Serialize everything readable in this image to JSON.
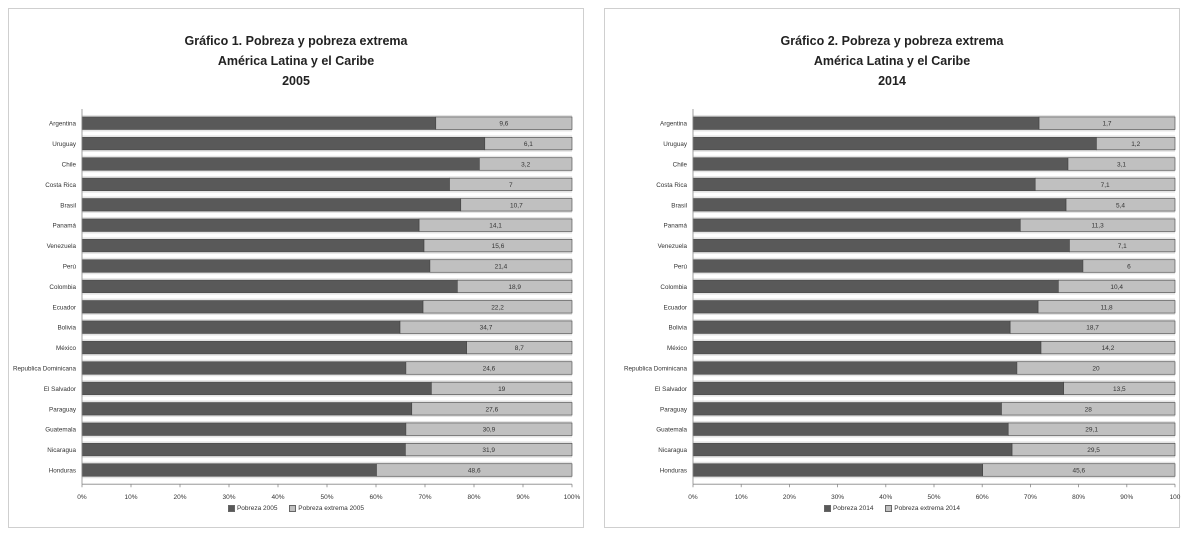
{
  "chart_data": [
    {
      "type": "bar",
      "orientation": "horizontal",
      "stacked": true,
      "title_lines": [
        "Gráfico 1. Pobreza y pobreza extrema",
        "América Latina y el Caribe",
        "2005"
      ],
      "categories": [
        "Argentina",
        "Uruguay",
        "Chile",
        "Costa Rica",
        "Brasil",
        "Panamá",
        "Venezuela",
        "Perú",
        "Colombia",
        "Ecuador",
        "Bolivia",
        "México",
        "Republica Dominicana",
        "El Salvador",
        "Paraguay",
        "Guatemala",
        "Nicaragua",
        "Honduras"
      ],
      "series": [
        {
          "name": "Pobreza 2005",
          "color": "#595959",
          "values": [
            72.2,
            82.2,
            81.1,
            75.0,
            77.3,
            68.8,
            69.8,
            71.0,
            76.6,
            69.6,
            64.9,
            78.5,
            66.1,
            71.3,
            67.3,
            66.1,
            66.0,
            60.1
          ]
        },
        {
          "name": "Pobreza extrema 2005",
          "color": "#c0c0c0",
          "values": [
            27.8,
            17.8,
            18.9,
            25.0,
            22.7,
            31.2,
            30.2,
            29.0,
            23.4,
            30.4,
            35.1,
            21.5,
            33.9,
            28.7,
            32.7,
            33.9,
            34.0,
            39.9
          ]
        }
      ],
      "data_labels": [
        "9,6",
        "6,1",
        "3,2",
        "7",
        "10,7",
        "14,1",
        "15,6",
        "21,4",
        "18,9",
        "22,2",
        "34,7",
        "8,7",
        "24,6",
        "19",
        "27,6",
        "30,9",
        "31,9",
        "48,6"
      ],
      "x_ticks": [
        "0%",
        "10%",
        "20%",
        "30%",
        "40%",
        "50%",
        "60%",
        "70%",
        "80%",
        "90%",
        "100%"
      ],
      "xlim": [
        0,
        100
      ],
      "legend_position": "bottom"
    },
    {
      "type": "bar",
      "orientation": "horizontal",
      "stacked": true,
      "title_lines": [
        "Gráfico 2. Pobreza y pobreza extrema",
        "América Latina y el Caribe",
        "2014"
      ],
      "categories": [
        "Argentina",
        "Uruguay",
        "Chile",
        "Costa Rica",
        "Brasil",
        "Panamá",
        "Venezuela",
        "Perú",
        "Colombia",
        "Ecuador",
        "Bolivia",
        "México",
        "Republica Dominicana",
        "El Salvador",
        "Paraguay",
        "Guatemala",
        "Nicaragua",
        "Honduras"
      ],
      "series": [
        {
          "name": "Pobreza 2014",
          "color": "#595959",
          "values": [
            71.8,
            83.7,
            77.8,
            71.0,
            77.4,
            67.9,
            78.1,
            80.9,
            75.8,
            71.6,
            65.8,
            72.2,
            67.2,
            76.9,
            64.0,
            65.4,
            66.2,
            60.1
          ]
        },
        {
          "name": "Pobreza extrema 2014",
          "color": "#c0c0c0",
          "values": [
            28.2,
            16.3,
            22.2,
            29.0,
            22.6,
            32.1,
            21.9,
            19.1,
            24.2,
            28.4,
            34.2,
            27.8,
            32.8,
            23.1,
            36.0,
            34.6,
            33.8,
            39.9
          ]
        }
      ],
      "data_labels": [
        "1,7",
        "1,2",
        "3,1",
        "7,1",
        "5,4",
        "11,3",
        "7,1",
        "6",
        "10,4",
        "11,8",
        "18,7",
        "14,2",
        "20",
        "13,5",
        "28",
        "29,1",
        "29,5",
        "45,6"
      ],
      "x_ticks": [
        "0%",
        "10%",
        "20%",
        "30%",
        "40%",
        "50%",
        "60%",
        "70%",
        "80%",
        "90%",
        "100"
      ],
      "xlim": [
        0,
        100
      ],
      "legend_position": "bottom"
    }
  ]
}
